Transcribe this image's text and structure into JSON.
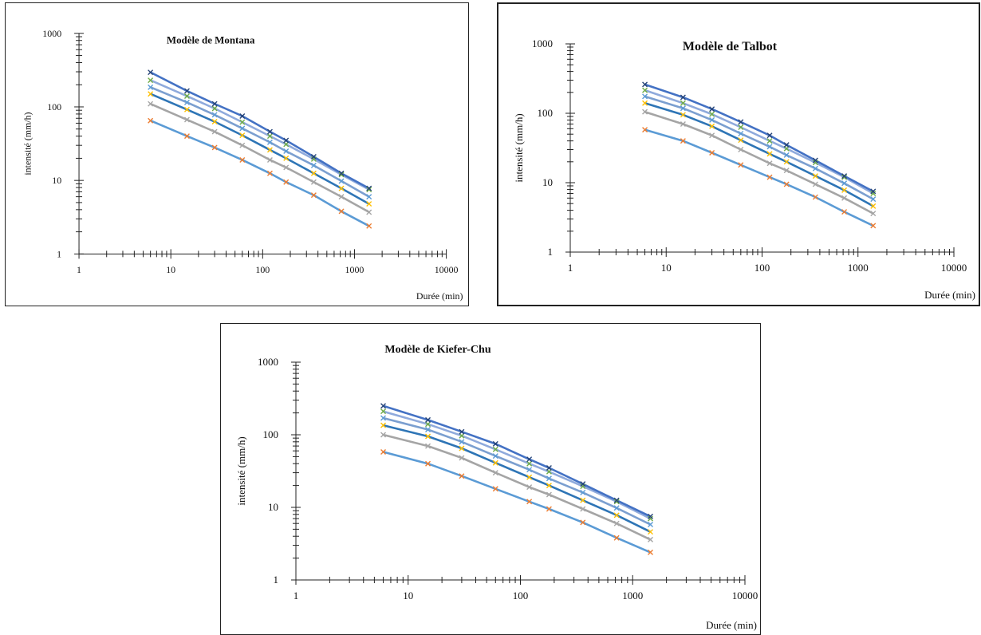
{
  "xlabel": "Durée (min)",
  "ylabel": "intensité (mm/h)",
  "x_ticks": [
    "1",
    "10",
    "100",
    "1000",
    "10000"
  ],
  "y_ticks": [
    "1",
    "10",
    "100",
    "1000"
  ],
  "colors": {
    "fit_lines": [
      "#5b9bd5",
      "#a5a5a5",
      "#2e75b6",
      "#7b9fd0",
      "#8faadc",
      "#4472c4"
    ],
    "markers": [
      "#ed7d31",
      "#a5a5a5",
      "#ffc000",
      "#5b9bd5",
      "#70ad47",
      "#264478"
    ]
  },
  "chart_data": [
    {
      "type": "scatter",
      "title": "Modèle de Montana",
      "xlabel": "Durée (min)",
      "ylabel": "intensité (mm/h)",
      "x_scale": "log",
      "y_scale": "log",
      "xlim": [
        1,
        10000
      ],
      "ylim": [
        1,
        1000
      ],
      "grid": false,
      "legend": "none",
      "x": [
        6,
        15,
        30,
        60,
        120,
        180,
        360,
        720,
        1440
      ],
      "series": [
        {
          "values": [
            65,
            40,
            28,
            19,
            12.5,
            9.5,
            6.3,
            3.8,
            2.4
          ]
        },
        {
          "values": [
            110,
            67,
            46,
            30,
            19,
            15,
            9.5,
            6.0,
            3.7
          ]
        },
        {
          "values": [
            150,
            92,
            63,
            41,
            26,
            20,
            12.5,
            7.8,
            4.8
          ]
        },
        {
          "values": [
            185,
            115,
            78,
            51,
            33,
            25,
            16,
            9.8,
            6.0
          ]
        },
        {
          "values": [
            230,
            140,
            95,
            62,
            40,
            31,
            19.5,
            12,
            7.5
          ]
        },
        {
          "values": [
            295,
            165,
            110,
            75,
            46,
            35,
            21,
            12.5,
            7.8
          ]
        }
      ]
    },
    {
      "type": "scatter",
      "title": "Modèle de Talbot",
      "xlabel": "Durée (min)",
      "ylabel": "intensité (mm/h)",
      "x_scale": "log",
      "y_scale": "log",
      "xlim": [
        1,
        10000
      ],
      "ylim": [
        1,
        1000
      ],
      "grid": false,
      "legend": "none",
      "x": [
        6,
        15,
        30,
        60,
        120,
        180,
        360,
        720,
        1440
      ],
      "series": [
        {
          "values": [
            58,
            40,
            27,
            18,
            12,
            9.5,
            6.2,
            3.8,
            2.4
          ]
        },
        {
          "values": [
            105,
            70,
            48,
            30,
            19,
            15,
            9.5,
            6.0,
            3.6
          ]
        },
        {
          "values": [
            140,
            95,
            65,
            41,
            26,
            20,
            12.5,
            7.8,
            4.6
          ]
        },
        {
          "values": [
            175,
            118,
            80,
            51,
            33,
            25,
            16,
            9.8,
            5.8
          ]
        },
        {
          "values": [
            215,
            140,
            97,
            63,
            40,
            31,
            19.5,
            12,
            7.0
          ]
        },
        {
          "values": [
            260,
            170,
            115,
            75,
            48,
            35,
            21,
            12.5,
            7.5
          ]
        }
      ]
    },
    {
      "type": "scatter",
      "title": "Modèle de Kiefer-Chu",
      "xlabel": "Durée (min)",
      "ylabel": "intensité (mm/h)",
      "x_scale": "log",
      "y_scale": "log",
      "xlim": [
        1,
        10000
      ],
      "ylim": [
        1,
        1000
      ],
      "grid": false,
      "legend": "none",
      "x": [
        6,
        15,
        30,
        60,
        120,
        180,
        360,
        720,
        1440
      ],
      "series": [
        {
          "values": [
            58,
            40,
            27,
            18,
            12,
            9.5,
            6.2,
            3.8,
            2.4
          ]
        },
        {
          "values": [
            100,
            70,
            48,
            30,
            19,
            15,
            9.5,
            6.0,
            3.6
          ]
        },
        {
          "values": [
            135,
            95,
            65,
            41,
            26,
            20,
            12.5,
            7.8,
            4.6
          ]
        },
        {
          "values": [
            170,
            118,
            80,
            51,
            33,
            25,
            16,
            9.8,
            5.8
          ]
        },
        {
          "values": [
            210,
            140,
            97,
            63,
            40,
            31,
            19.5,
            12,
            7.0
          ]
        },
        {
          "values": [
            250,
            160,
            110,
            75,
            46,
            35,
            21,
            12.5,
            7.5
          ]
        }
      ]
    }
  ]
}
